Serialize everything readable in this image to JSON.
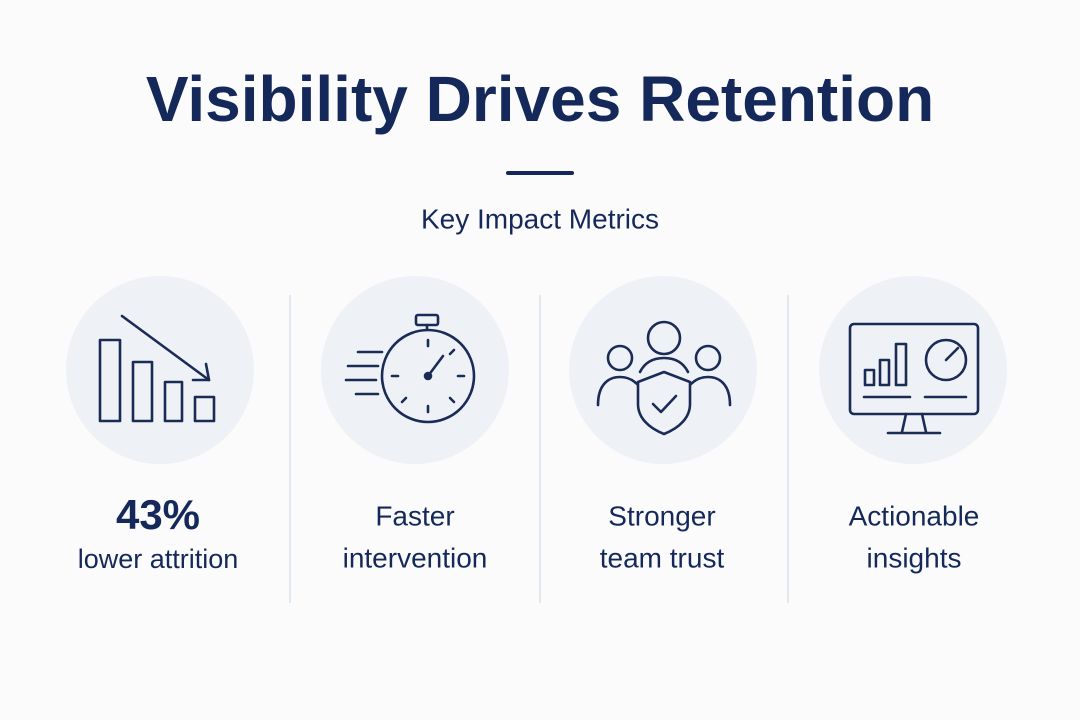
{
  "header": {
    "title": "Visibility Drives Retention",
    "subtitle": "Key Impact Metrics"
  },
  "metrics": [
    {
      "highlight": "43%",
      "lines": [
        "lower attrition"
      ]
    },
    {
      "lines": [
        "Faster",
        "intervention"
      ]
    },
    {
      "lines": [
        "Stronger",
        "team trust"
      ]
    },
    {
      "lines": [
        "Actionable",
        "insights"
      ]
    }
  ]
}
